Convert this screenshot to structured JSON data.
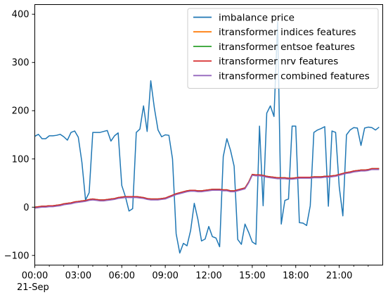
{
  "chart_data": {
    "type": "line",
    "title": "",
    "xlabel": "",
    "ylabel": "",
    "x_tick_labels": [
      "00:00",
      "03:00",
      "06:00",
      "09:00",
      "12:00",
      "15:00",
      "18:00",
      "21:00"
    ],
    "x_tick_hours": [
      0,
      3,
      6,
      9,
      12,
      15,
      18,
      21
    ],
    "x_date_label": "21-Sep",
    "xlim_hours": [
      0,
      24
    ],
    "y_ticks": [
      -100,
      0,
      100,
      200,
      300,
      400
    ],
    "y_tick_labels": [
      "−100",
      "0",
      "100",
      "200",
      "300",
      "400"
    ],
    "ylim": [
      -120,
      420
    ],
    "grid": false,
    "legend_position": "upper right",
    "x_step_minutes": 15,
    "series": [
      {
        "name": "imbalance price",
        "color": "#1f77b4",
        "values": [
          147,
          151,
          142,
          142,
          148,
          148,
          149,
          151,
          146,
          139,
          155,
          158,
          145,
          93,
          15,
          30,
          155,
          155,
          155,
          157,
          159,
          137,
          148,
          154,
          45,
          22,
          -8,
          -3,
          155,
          162,
          210,
          157,
          262,
          205,
          160,
          146,
          150,
          149,
          100,
          -55,
          -95,
          -75,
          -80,
          -48,
          8,
          -25,
          -70,
          -66,
          -40,
          -61,
          -64,
          -82,
          105,
          142,
          118,
          85,
          -67,
          -77,
          -35,
          -52,
          -72,
          -77,
          168,
          3,
          195,
          210,
          188,
          384,
          -35,
          14,
          17,
          168,
          168,
          -32,
          -33,
          -38,
          3,
          155,
          160,
          163,
          167,
          2,
          158,
          155,
          42,
          -18,
          150,
          160,
          165,
          164,
          128,
          164,
          166,
          165,
          160,
          166
        ]
      },
      {
        "name": "itransformer indices features",
        "color": "#ff7f0e",
        "values": [
          0,
          1,
          2,
          2,
          3,
          3,
          4,
          5,
          7,
          8,
          9,
          11,
          12,
          13,
          14,
          16,
          17,
          16,
          15,
          15,
          16,
          17,
          18,
          20,
          21,
          22,
          22,
          22,
          22,
          21,
          20,
          18,
          17,
          17,
          17,
          18,
          19,
          22,
          25,
          28,
          30,
          32,
          34,
          35,
          35,
          34,
          34,
          35,
          36,
          37,
          37,
          37,
          36,
          36,
          34,
          34,
          36,
          38,
          40,
          52,
          68,
          67,
          67,
          66,
          64,
          63,
          62,
          61,
          61,
          61,
          60,
          60,
          61,
          62,
          62,
          62,
          62,
          63,
          63,
          63,
          64,
          64,
          65,
          66,
          68,
          70,
          72,
          73,
          75,
          76,
          77,
          77,
          78,
          80,
          80,
          80
        ]
      },
      {
        "name": "itransformer entsoe features",
        "color": "#2ca02c",
        "values": [
          0,
          1,
          2,
          2,
          3,
          3,
          4,
          5,
          7,
          8,
          9,
          11,
          12,
          13,
          14,
          16,
          17,
          16,
          15,
          15,
          16,
          17,
          18,
          20,
          21,
          22,
          22,
          22,
          22,
          21,
          20,
          18,
          17,
          17,
          17,
          18,
          19,
          22,
          25,
          28,
          30,
          32,
          34,
          35,
          35,
          34,
          34,
          35,
          36,
          37,
          37,
          37,
          36,
          36,
          34,
          34,
          36,
          38,
          40,
          52,
          68,
          67,
          67,
          66,
          64,
          63,
          62,
          61,
          61,
          61,
          60,
          60,
          61,
          62,
          62,
          62,
          62,
          63,
          63,
          63,
          64,
          64,
          65,
          66,
          68,
          70,
          72,
          73,
          75,
          76,
          77,
          77,
          78,
          80,
          80,
          80
        ]
      },
      {
        "name": "itransformer nrv features",
        "color": "#d62728",
        "values": [
          0,
          1,
          2,
          2,
          3,
          3,
          4,
          5,
          7,
          8,
          9,
          11,
          12,
          13,
          14,
          16,
          17,
          16,
          15,
          15,
          16,
          17,
          18,
          20,
          21,
          22,
          22,
          22,
          22,
          21,
          20,
          18,
          17,
          17,
          17,
          18,
          19,
          22,
          25,
          28,
          30,
          32,
          34,
          35,
          35,
          34,
          34,
          35,
          36,
          37,
          37,
          37,
          36,
          36,
          34,
          34,
          36,
          38,
          40,
          52,
          68,
          67,
          67,
          66,
          64,
          63,
          62,
          61,
          61,
          61,
          60,
          60,
          61,
          62,
          62,
          62,
          62,
          63,
          63,
          63,
          64,
          64,
          65,
          66,
          68,
          70,
          72,
          73,
          75,
          76,
          77,
          77,
          78,
          80,
          80,
          80
        ]
      },
      {
        "name": "itransformer combined features",
        "color": "#9467bd",
        "values": [
          -2,
          -1,
          0,
          0,
          1,
          1,
          2,
          3,
          5,
          6,
          7,
          9,
          10,
          11,
          12,
          14,
          15,
          14,
          13,
          13,
          14,
          15,
          16,
          18,
          19,
          20,
          20,
          20,
          20,
          19,
          18,
          16,
          15,
          15,
          15,
          16,
          17,
          20,
          23,
          26,
          28,
          30,
          32,
          33,
          33,
          32,
          32,
          33,
          34,
          35,
          35,
          35,
          34,
          34,
          32,
          32,
          34,
          36,
          38,
          50,
          66,
          65,
          65,
          64,
          62,
          61,
          60,
          59,
          59,
          59,
          58,
          58,
          59,
          60,
          60,
          60,
          60,
          61,
          61,
          61,
          62,
          62,
          63,
          64,
          66,
          68,
          70,
          71,
          73,
          74,
          75,
          75,
          76,
          78,
          78,
          78
        ]
      }
    ]
  }
}
